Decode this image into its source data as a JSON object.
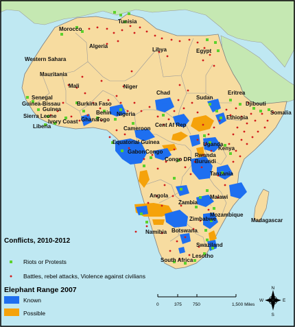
{
  "colors": {
    "ocean": "#bfe8f2",
    "africa_land": "#f7dca0",
    "other_land": "#c5e8b2",
    "border": "#9b9b9b",
    "known_range": "#1e6ff0",
    "possible_range": "#f5a20a",
    "riot_marker": "#5cd12d",
    "battle_marker": "#d11b1b"
  },
  "country_labels": [
    "Tunisia",
    "Morocco",
    "Algeria",
    "Libya",
    "Egypt",
    "Western Sahara",
    "Mauritania",
    "Mali",
    "Niger",
    "Chad",
    "Sudan",
    "Eritrea",
    "Senegal",
    "Guinea-Bissau",
    "Guinea",
    "Sierra Leone",
    "Liberia",
    "Ivory Coast",
    "Burkina Faso",
    "Benin",
    "Ghana",
    "Togo",
    "Nigeria",
    "Djibouti",
    "Somalia",
    "Ethiopia",
    "Cent Af Rep",
    "Cameroon",
    "Equatorial Guinea",
    "Gabon",
    "Congo",
    "Uganda",
    "Kenya",
    "Rwanda",
    "Burundi",
    "Congo DR",
    "Tanzania",
    "Angola",
    "Malawi",
    "Zambia",
    "Mozambique",
    "Zimbabwe",
    "Madagascar",
    "Namibia",
    "Botswana",
    "Swaziland",
    "Lesotho",
    "South Africa"
  ],
  "legend": {
    "conflicts_title": "Conflicts, 2010-2012",
    "riots_label": "Riots or Protests",
    "battles_label": "Battles, rebel attacks, Violence against civilians",
    "elephant_title": "Elephant Range 2007",
    "known_label": "Known",
    "possible_label": "Possible"
  },
  "scale_bar": {
    "ticks": [
      "0",
      "375",
      "750",
      "1,500 Miles"
    ]
  },
  "compass": {
    "north": "N",
    "south": "S",
    "east": "E",
    "west": "W"
  }
}
